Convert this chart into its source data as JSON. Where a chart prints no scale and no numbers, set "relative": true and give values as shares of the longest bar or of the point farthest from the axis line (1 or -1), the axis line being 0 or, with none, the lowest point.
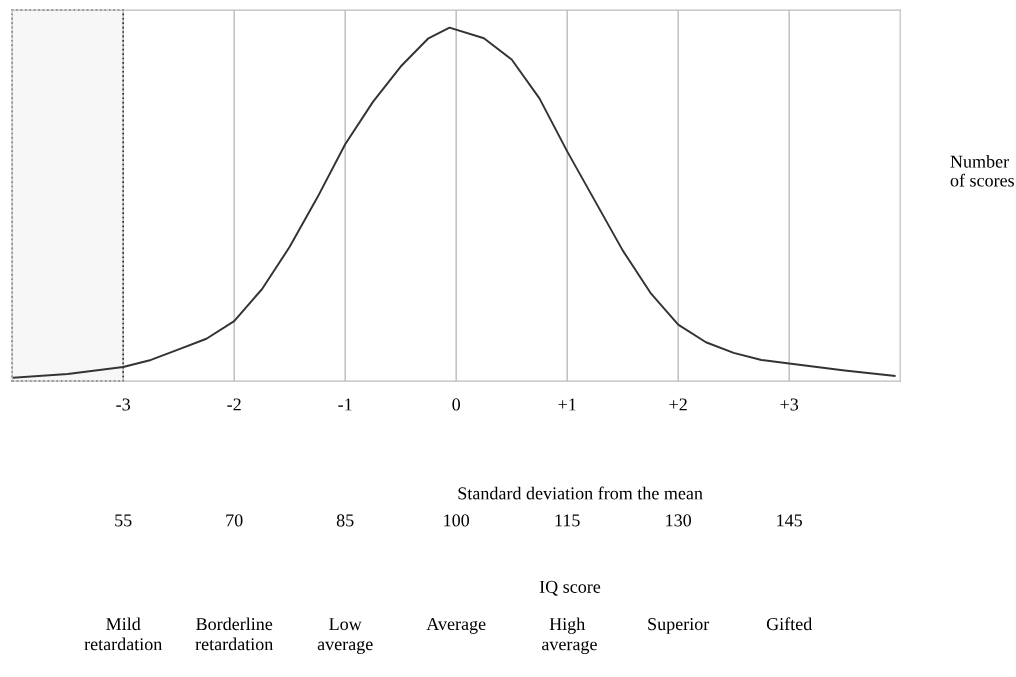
{
  "chart_data": {
    "type": "line",
    "relative": true,
    "xlabel": "Standard deviation from the mean",
    "ylabel": "Number\nof scores",
    "x2label": "IQ score",
    "xlim": [
      -4,
      4
    ],
    "xticks": [
      -3,
      -2,
      -1,
      0,
      {
        "value": 1,
        "label": "+1"
      },
      {
        "value": 2,
        "label": "+2"
      },
      {
        "value": 3,
        "label": "+3"
      }
    ],
    "x2lim": [
      40,
      160
    ],
    "x2ticks": [
      55,
      70,
      85,
      100,
      115,
      130,
      145
    ],
    "grid": "x",
    "tick_labels": "x",
    "series": [
      {
        "color": "#333333",
        "x": [
          -3.99,
          -3.5,
          -3,
          -2.75,
          -2.5,
          -2.25,
          -2,
          -1.75,
          -1.5,
          -1.25,
          -1,
          -0.75,
          -0.5,
          -0.25,
          -0.06,
          0.25,
          0.5,
          0.75,
          1,
          1.25,
          1.5,
          1.75,
          2,
          2.25,
          2.5,
          2.75,
          3,
          3.5,
          3.95
        ],
        "values": [
          0.01,
          0.02,
          0.04,
          0.06,
          0.09,
          0.12,
          0.17,
          0.26,
          0.38,
          0.52,
          0.67,
          0.79,
          0.89,
          0.97,
          1.0,
          0.97,
          0.91,
          0.8,
          0.65,
          0.51,
          0.37,
          0.25,
          0.16,
          0.11,
          0.08,
          0.06,
          0.05,
          0.03,
          0.015
        ]
      }
    ],
    "bands": [
      {
        "axis": "x",
        "from": -4,
        "to": -3,
        "color": "#333333"
      }
    ],
    "annotations": [
      "Mild\nretardation",
      "Borderline\nretardation",
      "Low\naverage",
      "Average",
      "High\n average",
      "Superior",
      "Gifted"
    ]
  }
}
